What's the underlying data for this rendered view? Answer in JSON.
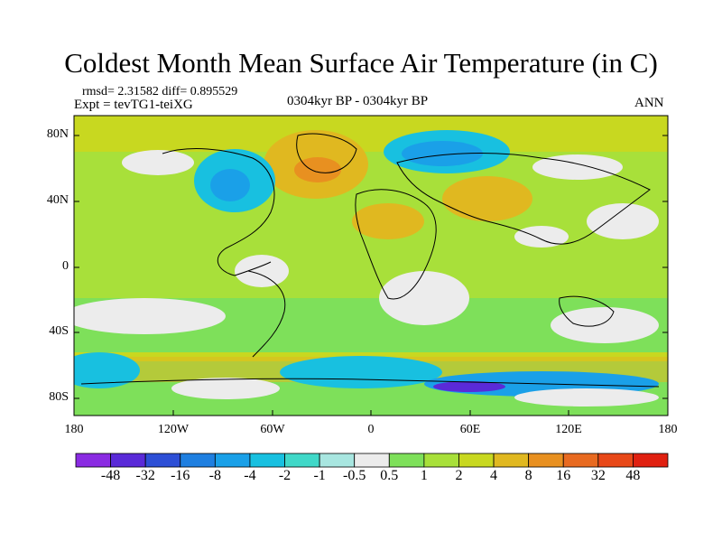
{
  "title": "Coldest Month Mean Surface Air Temperature (in C)",
  "stats": "rmsd= 2.31582  diff= 0.895529",
  "expt": "Expt = tevTG1-teiXG",
  "period": "0304kyr BP - 0304kyr BP",
  "season": "ANN",
  "lat_labels": [
    "80N",
    "40N",
    "0",
    "40S",
    "80S"
  ],
  "lon_labels": [
    "180",
    "120W",
    "60W",
    "0",
    "60E",
    "120E",
    "180"
  ],
  "colorbar": {
    "labels": [
      "-48",
      "-32",
      "-16",
      "-8",
      "-4",
      "-2",
      "-1",
      "-0.5",
      "0.5",
      "1",
      "2",
      "4",
      "8",
      "16",
      "32",
      "48"
    ],
    "colors": [
      "#8a2be2",
      "#5a2ad8",
      "#2d4fd6",
      "#1f7fe0",
      "#1aa0e8",
      "#18c0e0",
      "#40d8c8",
      "#a8e6e0",
      "#ececec",
      "#7ee05a",
      "#a8e03a",
      "#c8d820",
      "#e0b820",
      "#e89020",
      "#e86a20",
      "#e84818",
      "#e02010"
    ]
  },
  "chart_data": {
    "type": "heatmap",
    "title": "Coldest Month Mean Surface Air Temperature (in C)",
    "x_range": [
      -180,
      180
    ],
    "y_range": [
      -90,
      90
    ],
    "x_ticks": [
      "180",
      "120W",
      "60W",
      "0",
      "60E",
      "120E",
      "180"
    ],
    "y_ticks": [
      "80N",
      "40N",
      "0",
      "40S",
      "80S"
    ],
    "levels": [
      -48,
      -32,
      -16,
      -8,
      -4,
      -2,
      -1,
      -0.5,
      0.5,
      1,
      2,
      4,
      8,
      16,
      32,
      48
    ]
  }
}
